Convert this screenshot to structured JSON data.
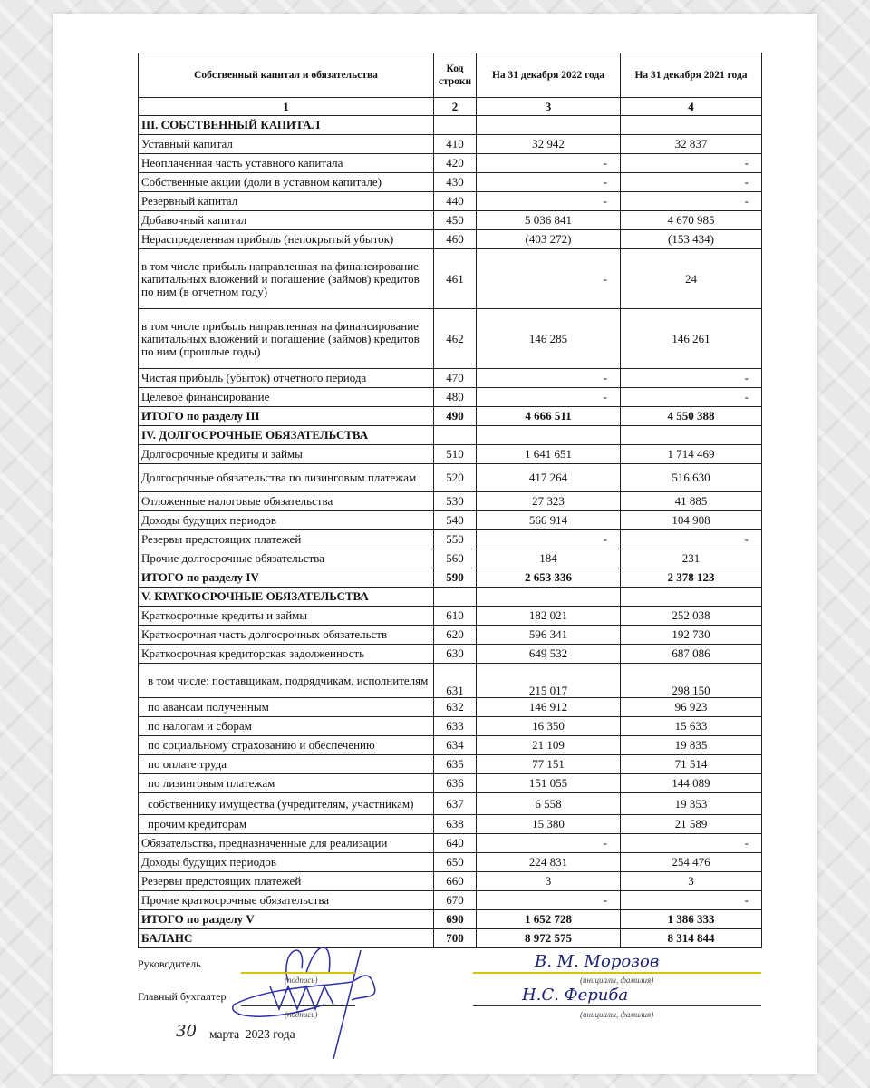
{
  "table": {
    "headers": [
      "Собственный капитал и обязательства",
      "Код строки",
      "На 31 декабря 2022 года",
      "На 31 декабря 2021 года"
    ],
    "column_numbers": [
      "1",
      "2",
      "3",
      "4"
    ],
    "rows": [
      {
        "label": "III. СОБСТВЕННЫЙ КАПИТАЛ",
        "code": "",
        "y2022": "",
        "y2021": "",
        "type": "section"
      },
      {
        "label": "Уставный капитал",
        "code": "410",
        "y2022": "32 942",
        "y2021": "32 837"
      },
      {
        "label": "Неоплаченная часть уставного капитала",
        "code": "420",
        "y2022": "-",
        "y2021": "-"
      },
      {
        "label": "Собственные акции (доли в уставном капитале)",
        "code": "430",
        "y2022": "-",
        "y2021": "-"
      },
      {
        "label": "Резервный капитал",
        "code": "440",
        "y2022": "-",
        "y2021": "-"
      },
      {
        "label": "Добавочный капитал",
        "code": "450",
        "y2022": "5 036 841",
        "y2021": "4 670 985"
      },
      {
        "label": "Нераспределенная прибыль (непокрытый убыток)",
        "code": "460",
        "y2022": "(403 272)",
        "y2021": "(153 434)"
      },
      {
        "label": "в том числе прибыль направленная на финансирование капитальных вложений и погашение (займов) кредитов по ним (в отчетном году)",
        "code": "461",
        "y2022": "-",
        "y2021": "24"
      },
      {
        "label": "в том числе прибыль направленная на финансирование капитальных вложений и погашение (займов) кредитов по ним (прошлые годы)",
        "code": "462",
        "y2022": "146 285",
        "y2021": "146 261"
      },
      {
        "label": "Чистая прибыль (убыток) отчетного периода",
        "code": "470",
        "y2022": "-",
        "y2021": "-"
      },
      {
        "label": "Целевое финансирование",
        "code": "480",
        "y2022": "-",
        "y2021": "-"
      },
      {
        "label": "ИТОГО по разделу III",
        "code": "490",
        "y2022": "4 666 511",
        "y2021": "4 550 388",
        "type": "total"
      },
      {
        "label": "IV. ДОЛГОСРОЧНЫЕ ОБЯЗАТЕЛЬСТВА",
        "code": "",
        "y2022": "",
        "y2021": "",
        "type": "section"
      },
      {
        "label": "Долгосрочные кредиты и займы",
        "code": "510",
        "y2022": "1 641 651",
        "y2021": "1 714 469"
      },
      {
        "label": "Долгосрочные обязательства по лизинговым платежам",
        "code": "520",
        "y2022": "417 264",
        "y2021": "516 630"
      },
      {
        "label": "Отложенные налоговые обязательства",
        "code": "530",
        "y2022": "27 323",
        "y2021": "41 885"
      },
      {
        "label": "Доходы будущих периодов",
        "code": "540",
        "y2022": "566 914",
        "y2021": "104 908"
      },
      {
        "label": "Резервы предстоящих платежей",
        "code": "550",
        "y2022": "-",
        "y2021": "-"
      },
      {
        "label": "Прочие долгосрочные обязательства",
        "code": "560",
        "y2022": "184",
        "y2021": "231"
      },
      {
        "label": "ИТОГО по разделу IV",
        "code": "590",
        "y2022": "2 653 336",
        "y2021": "2 378 123",
        "type": "total"
      },
      {
        "label": "V. КРАТКОСРОЧНЫЕ ОБЯЗАТЕЛЬСТВА",
        "code": "",
        "y2022": "",
        "y2021": "",
        "type": "section"
      },
      {
        "label": "Краткосрочные кредиты и займы",
        "code": "610",
        "y2022": "182 021",
        "y2021": "252 038"
      },
      {
        "label": "Краткосрочная часть долгосрочных обязательств",
        "code": "620",
        "y2022": "596 341",
        "y2021": "192 730"
      },
      {
        "label": "Краткосрочная кредиторская задолженность",
        "code": "630",
        "y2022": "649 532",
        "y2021": "687 086"
      },
      {
        "label": "в том числе: поставщикам, подрядчикам, исполнителям",
        "code": "631",
        "y2022": "215 017",
        "y2021": "298 150",
        "type": "sub"
      },
      {
        "label": "по авансам полученным",
        "code": "632",
        "y2022": "146 912",
        "y2021": "96 923",
        "type": "sub"
      },
      {
        "label": "по налогам и сборам",
        "code": "633",
        "y2022": "16 350",
        "y2021": "15 633",
        "type": "sub"
      },
      {
        "label": "по социальному страхованию и обеспечению",
        "code": "634",
        "y2022": "21 109",
        "y2021": "19 835",
        "type": "sub"
      },
      {
        "label": "по оплате труда",
        "code": "635",
        "y2022": "77 151",
        "y2021": "71 514",
        "type": "sub"
      },
      {
        "label": "по лизинговым платежам",
        "code": "636",
        "y2022": "151 055",
        "y2021": "144 089",
        "type": "sub"
      },
      {
        "label": "собственнику имущества (учредителям, участникам)",
        "code": "637",
        "y2022": "6 558",
        "y2021": "19 353",
        "type": "sub"
      },
      {
        "label": "прочим кредиторам",
        "code": "638",
        "y2022": "15 380",
        "y2021": "21 589",
        "type": "sub"
      },
      {
        "label": "Обязательства, предназначенные для реализации",
        "code": "640",
        "y2022": "-",
        "y2021": "-"
      },
      {
        "label": "Доходы будущих периодов",
        "code": "650",
        "y2022": "224 831",
        "y2021": "254 476"
      },
      {
        "label": "Резервы предстоящих платежей",
        "code": "660",
        "y2022": "3",
        "y2021": "3"
      },
      {
        "label": "Прочие краткосрочные обязательства",
        "code": "670",
        "y2022": "-",
        "y2021": "-"
      },
      {
        "label": "ИТОГО по разделу V",
        "code": "690",
        "y2022": "1 652 728",
        "y2021": "1 386 333",
        "type": "total"
      },
      {
        "label": "БАЛАНС",
        "code": "700",
        "y2022": "8 972 575",
        "y2021": "8 314 844",
        "type": "total"
      }
    ]
  },
  "signatures": {
    "head_label": "Руководитель",
    "accountant_label": "Главный бухгалтер",
    "signature_caption": "(подпись)",
    "name_caption": "(инициалы, фамилия)",
    "head_name": "В. М. Морозов",
    "accountant_name": "Н.С. Фериба",
    "date_day": "30",
    "date_rest": "марта  2023 года"
  }
}
